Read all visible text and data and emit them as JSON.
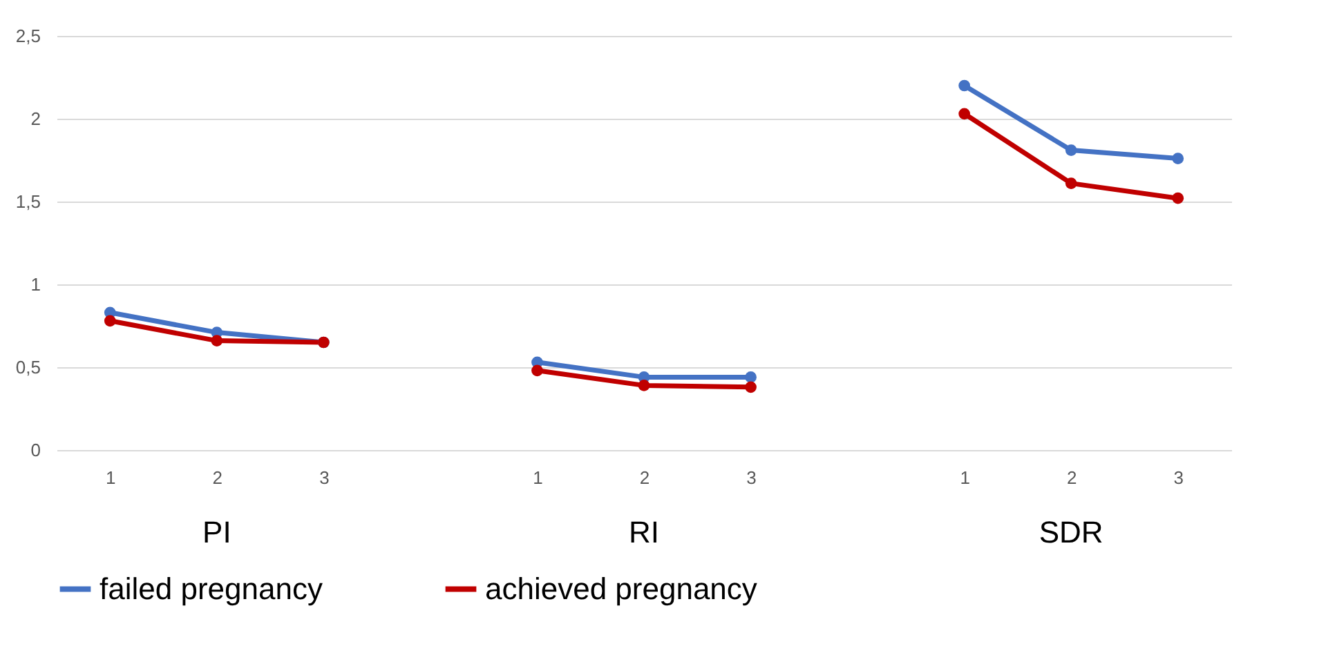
{
  "chart_data": {
    "type": "line",
    "categories": [
      "1",
      "2",
      "3",
      null,
      "1",
      "2",
      "3",
      null,
      "1",
      "2",
      "3"
    ],
    "series": [
      {
        "name": "failed pregnancy",
        "color": "#4472c4",
        "values": [
          0.83,
          0.71,
          0.65,
          null,
          0.53,
          0.44,
          0.44,
          null,
          2.2,
          1.81,
          1.76
        ]
      },
      {
        "name": "achieved pregnancy",
        "color": "#c00000",
        "values": [
          0.78,
          0.66,
          0.65,
          null,
          0.48,
          0.39,
          0.38,
          null,
          2.03,
          1.61,
          1.52
        ]
      }
    ],
    "annotations": [
      "PI",
      "RI",
      "SDR"
    ],
    "ylim": [
      0,
      2.5
    ],
    "yticks": [
      0,
      {
        "value": 0.5,
        "label": "0,5"
      },
      1,
      {
        "value": 1.5,
        "label": "1,5"
      },
      2,
      {
        "value": 2.5,
        "label": "2,5"
      }
    ],
    "grid": "y",
    "legend": "bottom",
    "marker": "circle",
    "line_style": "solid"
  }
}
